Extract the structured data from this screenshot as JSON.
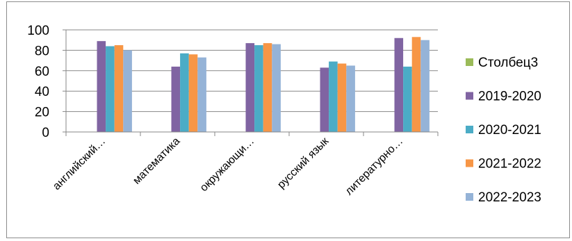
{
  "chart_data": {
    "type": "bar",
    "title": "",
    "xlabel": "",
    "ylabel": "",
    "ylim": [
      0,
      100
    ],
    "yticks": [
      0,
      20,
      40,
      60,
      80,
      100
    ],
    "grid": true,
    "legend_position": "right",
    "categories": [
      "английский…",
      "математика",
      "окружающи…",
      "русский язык",
      "литературно…"
    ],
    "series": [
      {
        "name": "Столбец3",
        "color": "#9bbb59",
        "values": [
          0,
          0,
          0,
          0,
          0
        ]
      },
      {
        "name": "2019-2020",
        "color": "#8064a2",
        "values": [
          89,
          64,
          87,
          63,
          92
        ]
      },
      {
        "name": "2020-2021",
        "color": "#4bacc6",
        "values": [
          84,
          77,
          85,
          69,
          64
        ]
      },
      {
        "name": "2021-2022",
        "color": "#f79646",
        "values": [
          85,
          76,
          87,
          67,
          93
        ]
      },
      {
        "name": "2022-2023",
        "color": "#95b3d7",
        "values": [
          80,
          73,
          86,
          65,
          90
        ]
      }
    ]
  }
}
